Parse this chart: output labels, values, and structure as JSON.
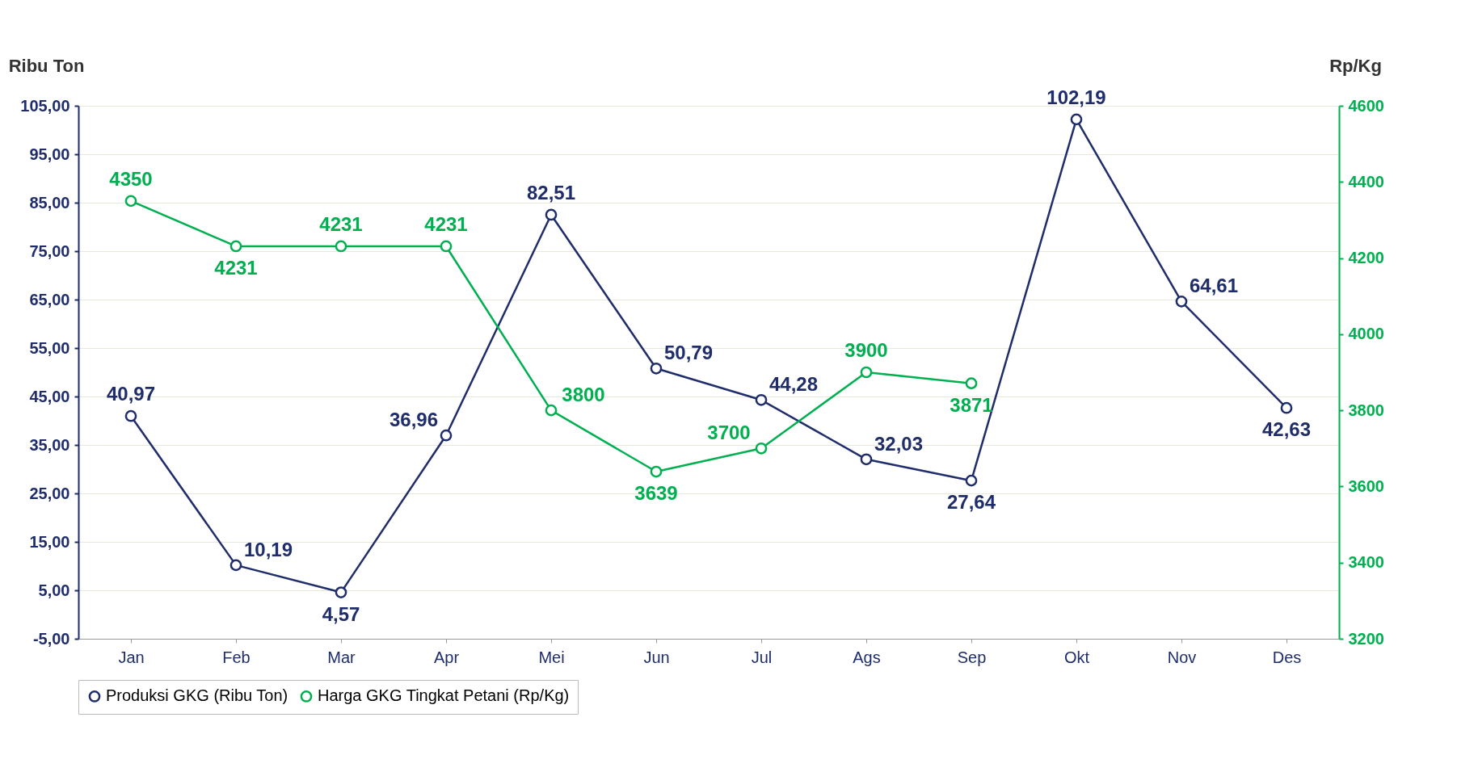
{
  "chart_data": {
    "type": "line",
    "ylabel": "Ribu Ton",
    "y2label": "Rp/Kg",
    "categories": [
      "Jan",
      "Feb",
      "Mar",
      "Apr",
      "Mei",
      "Jun",
      "Jul",
      "Ags",
      "Sep",
      "Okt",
      "Nov",
      "Des"
    ],
    "series": [
      {
        "name": "Produksi GKG (Ribu Ton)",
        "color": "#1f2d6b",
        "values": [
          40.97,
          10.19,
          4.57,
          36.96,
          82.51,
          50.79,
          44.28,
          32.03,
          27.64,
          102.19,
          64.61,
          42.63
        ],
        "value_labels": [
          "40,97",
          "10,19",
          "4,57",
          "36,96",
          "82,51",
          "50,79",
          "44,28",
          "32,03",
          "27,64",
          "102,19",
          "64,61",
          "42,63"
        ]
      },
      {
        "name": "Harga GKG Tingkat Petani (Rp/Kg)",
        "color": "#00b050",
        "axis": "y2",
        "values": [
          4350,
          4231,
          4231,
          4231,
          3800,
          3639,
          3700,
          3900,
          3871,
          null,
          null,
          null
        ],
        "value_labels": [
          "4350",
          "4231",
          "4231",
          "4231",
          "3800",
          "3639",
          "3700",
          "3900",
          "3871",
          null,
          null,
          null
        ]
      }
    ],
    "ylim": [
      -5,
      105
    ],
    "yticks": [
      {
        "value": -5,
        "label": "-5,00"
      },
      {
        "value": 5,
        "label": "5,00"
      },
      {
        "value": 15,
        "label": "15,00"
      },
      {
        "value": 25,
        "label": "25,00"
      },
      {
        "value": 35,
        "label": "35,00"
      },
      {
        "value": 45,
        "label": "45,00"
      },
      {
        "value": 55,
        "label": "55,00"
      },
      {
        "value": 65,
        "label": "65,00"
      },
      {
        "value": 75,
        "label": "75,00"
      },
      {
        "value": 85,
        "label": "85,00"
      },
      {
        "value": 95,
        "label": "95,00"
      },
      {
        "value": 105,
        "label": "105,00"
      }
    ],
    "y2lim": [
      3200,
      4600
    ],
    "y2ticks": [
      3200,
      3400,
      3600,
      3800,
      4000,
      4200,
      4400,
      4600
    ],
    "grid": "y",
    "legend": "bottom",
    "marker": "circle",
    "line_style": "solid"
  }
}
